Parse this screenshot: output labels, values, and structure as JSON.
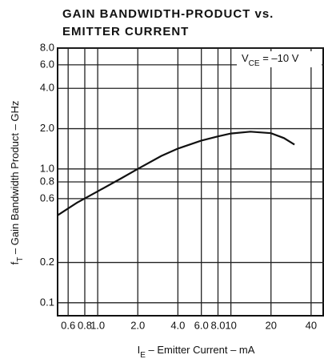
{
  "chart_data": {
    "type": "line",
    "title": [
      "GAIN BANDWIDTH-PRODUCT vs.",
      "EMITTER CURRENT"
    ],
    "x_label": "I_E – Emitter Current – mA",
    "y_label": "f_T – Gain Bandwidth Product – GHz",
    "annotation": "V_CE = –10 V",
    "log_x": true,
    "log_y": true,
    "grid": true,
    "xlim": [
      0.5,
      50
    ],
    "ylim": [
      0.08,
      8.0
    ],
    "xticks": [
      0.6,
      0.8,
      {
        "value": 1,
        "label": "1.0"
      },
      {
        "value": 2,
        "label": "2.0"
      },
      {
        "value": 4,
        "label": "4.0"
      },
      {
        "value": 6,
        "label": "6.0"
      },
      {
        "value": 8,
        "label": "8.0"
      },
      10,
      20,
      40
    ],
    "yticks": [
      0.1,
      0.2,
      0.6,
      0.8,
      {
        "value": 1,
        "label": "1.0"
      },
      {
        "value": 2,
        "label": "2.0"
      },
      {
        "value": 4,
        "label": "4.0"
      },
      {
        "value": 6,
        "label": "6.0"
      },
      {
        "value": 8,
        "label": "8.0"
      }
    ],
    "series": [
      {
        "name": "f_T",
        "color": "#111111",
        "x": [
          0.5,
          0.7,
          1.0,
          1.5,
          2.0,
          3.0,
          4.0,
          6.0,
          8.0,
          10,
          14,
          20,
          25,
          30
        ],
        "values": [
          0.45,
          0.56,
          0.68,
          0.85,
          1.0,
          1.25,
          1.42,
          1.63,
          1.75,
          1.84,
          1.9,
          1.85,
          1.7,
          1.52
        ]
      }
    ]
  }
}
